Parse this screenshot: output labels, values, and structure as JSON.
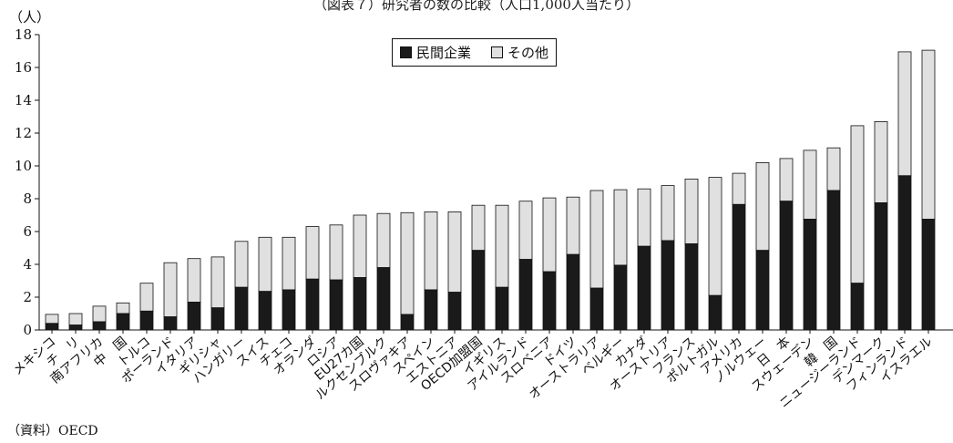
{
  "title": "（図表７）研究者の数の比較（人口1,000人当たり）",
  "unit_label": "（人）",
  "source": "（資料）OECD",
  "colors": {
    "private": "#1a1a1a",
    "other": "#e0e0e0",
    "stroke": "#111111"
  },
  "chart_data": {
    "type": "bar",
    "stacked": true,
    "title": "（図表７）研究者の数の比較（人口1,000人当たり）",
    "ylabel": "（人）",
    "ylim": [
      0,
      18
    ],
    "yticks": [
      0,
      2,
      4,
      6,
      8,
      10,
      12,
      14,
      16,
      18
    ],
    "legend": {
      "placement": "top-center",
      "entries": [
        "民間企業",
        "その他"
      ]
    },
    "categories": [
      "メキシコ",
      "チ　リ",
      "南アフリカ",
      "中　国",
      "トルコ",
      "ポーランド",
      "イタリア",
      "ギリシャ",
      "ハンガリー",
      "スイス",
      "チェコ",
      "オランダ",
      "ロシア",
      "EU27カ国",
      "ルクセンブルク",
      "スロヴァキア",
      "スペイン",
      "エストニア",
      "OECD加盟国",
      "イギリス",
      "アイルランド",
      "スロベニア",
      "ドイツ",
      "オーストラリア",
      "ベルギー",
      "カナダ",
      "オーストリア",
      "フランス",
      "ポルトガル",
      "アメリカ",
      "ノルウェー",
      "日　本",
      "スウェーデン",
      "韓　国",
      "ニュージーランド",
      "デンマーク",
      "フィンランド",
      "イスラエル"
    ],
    "series": [
      {
        "name": "民間企業",
        "values": [
          0.4,
          0.3,
          0.5,
          1.0,
          1.15,
          0.8,
          1.7,
          1.35,
          2.6,
          2.35,
          2.45,
          3.1,
          3.05,
          3.2,
          3.8,
          0.95,
          2.45,
          2.3,
          4.85,
          2.6,
          4.3,
          3.55,
          4.6,
          2.55,
          3.95,
          5.1,
          5.45,
          5.25,
          2.1,
          7.65,
          4.85,
          7.85,
          6.75,
          8.5,
          2.85,
          7.75,
          9.4,
          6.75
        ]
      },
      {
        "name": "その他",
        "values": [
          0.55,
          0.7,
          0.95,
          0.65,
          1.7,
          3.3,
          2.65,
          3.1,
          2.8,
          3.3,
          3.2,
          3.2,
          3.35,
          3.8,
          3.3,
          6.2,
          4.75,
          4.9,
          2.75,
          5.0,
          3.55,
          4.5,
          3.5,
          5.95,
          4.6,
          3.5,
          3.35,
          3.95,
          7.2,
          1.9,
          5.35,
          2.6,
          4.2,
          2.6,
          9.6,
          4.95,
          7.55,
          10.3
        ]
      }
    ]
  }
}
